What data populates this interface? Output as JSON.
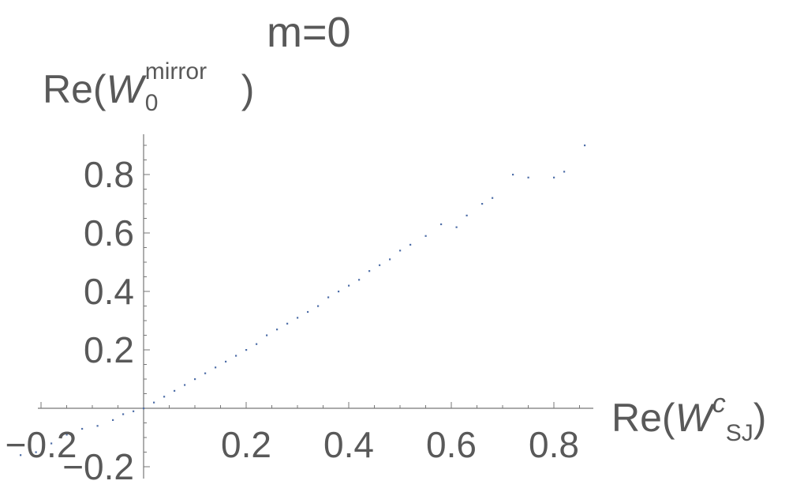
{
  "chart_data": {
    "type": "scatter",
    "title": "m=0",
    "xlabel": {
      "prefix": "Re(",
      "symbol": "W",
      "superscript": "c",
      "subscript": "SJ",
      "suffix": ")"
    },
    "ylabel": {
      "prefix": "Re(",
      "symbol": "W",
      "superscript": "mirror",
      "subscript": "0",
      "suffix": ")"
    },
    "xlim": [
      -0.26,
      0.88
    ],
    "ylim": [
      -0.24,
      0.95
    ],
    "x_ticks": [
      {
        "value": -0.2,
        "label": "−0.2"
      },
      {
        "value": 0.2,
        "label": "0.2"
      },
      {
        "value": 0.4,
        "label": "0.4"
      },
      {
        "value": 0.6,
        "label": "0.6"
      },
      {
        "value": 0.8,
        "label": "0.8"
      }
    ],
    "y_ticks": [
      {
        "value": -0.2,
        "label": "−0.2"
      },
      {
        "value": 0.2,
        "label": "0.2"
      },
      {
        "value": 0.4,
        "label": "0.4"
      },
      {
        "value": 0.6,
        "label": "0.6"
      },
      {
        "value": 0.8,
        "label": "0.8"
      }
    ],
    "grid": false,
    "marker_color": "#4f6fa8",
    "series": [
      {
        "points": [
          [
            -0.24,
            -0.16
          ],
          [
            -0.21,
            -0.15
          ],
          [
            -0.18,
            -0.12
          ],
          [
            -0.15,
            -0.09
          ],
          [
            -0.12,
            -0.07
          ],
          [
            -0.09,
            -0.06
          ],
          [
            -0.06,
            -0.04
          ],
          [
            -0.04,
            -0.02
          ],
          [
            -0.02,
            -0.01
          ],
          [
            0.0,
            0.0
          ],
          [
            0.02,
            0.02
          ],
          [
            0.04,
            0.04
          ],
          [
            0.06,
            0.06
          ],
          [
            0.08,
            0.08
          ],
          [
            0.1,
            0.1
          ],
          [
            0.12,
            0.12
          ],
          [
            0.14,
            0.14
          ],
          [
            0.16,
            0.16
          ],
          [
            0.18,
            0.18
          ],
          [
            0.2,
            0.2
          ],
          [
            0.22,
            0.22
          ],
          [
            0.24,
            0.25
          ],
          [
            0.26,
            0.27
          ],
          [
            0.28,
            0.29
          ],
          [
            0.3,
            0.31
          ],
          [
            0.32,
            0.33
          ],
          [
            0.34,
            0.35
          ],
          [
            0.36,
            0.38
          ],
          [
            0.38,
            0.4
          ],
          [
            0.4,
            0.42
          ],
          [
            0.42,
            0.44
          ],
          [
            0.44,
            0.47
          ],
          [
            0.46,
            0.49
          ],
          [
            0.48,
            0.51
          ],
          [
            0.5,
            0.54
          ],
          [
            0.52,
            0.56
          ],
          [
            0.55,
            0.59
          ],
          [
            0.58,
            0.63
          ],
          [
            0.61,
            0.62
          ],
          [
            0.63,
            0.66
          ],
          [
            0.66,
            0.7
          ],
          [
            0.68,
            0.72
          ],
          [
            0.72,
            0.8
          ],
          [
            0.75,
            0.79
          ],
          [
            0.8,
            0.79
          ],
          [
            0.82,
            0.81
          ],
          [
            0.86,
            0.9
          ]
        ]
      }
    ]
  }
}
